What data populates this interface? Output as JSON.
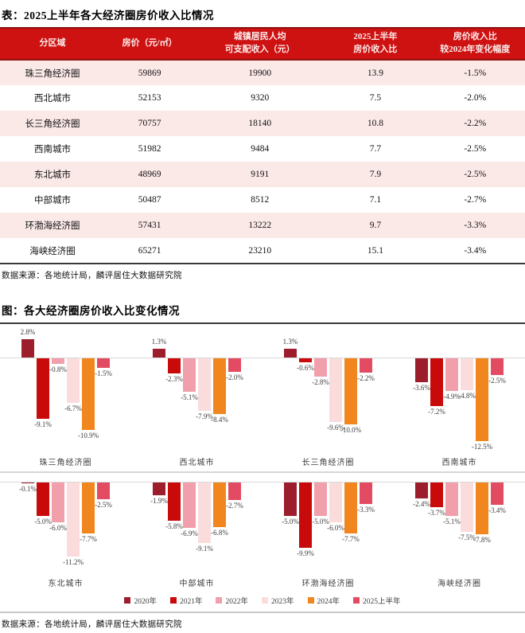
{
  "table_section": {
    "title": "表：2025上半年各大经济圈房价收入比情况",
    "source": "数据来源：各地统计局，麟评居住大数据研究院",
    "columns": [
      "分区域",
      "房价（元/㎡）",
      "城镇居民人均\n可支配收入（元）",
      "2025上半年\n房价收入比",
      "房价收入比\n较2024年变化幅度"
    ],
    "rows": [
      [
        "珠三角经济圈",
        "59869",
        "19900",
        "13.9",
        "-1.5%"
      ],
      [
        "西北城市",
        "52153",
        "9320",
        "7.5",
        "-2.0%"
      ],
      [
        "长三角经济圈",
        "70757",
        "18140",
        "10.8",
        "-2.2%"
      ],
      [
        "西南城市",
        "51982",
        "9484",
        "7.7",
        "-2.5%"
      ],
      [
        "东北城市",
        "48969",
        "9191",
        "7.9",
        "-2.5%"
      ],
      [
        "中部城市",
        "50487",
        "8512",
        "7.1",
        "-2.7%"
      ],
      [
        "环渤海经济圈",
        "57431",
        "13222",
        "9.7",
        "-3.3%"
      ],
      [
        "海峡经济圈",
        "65271",
        "23210",
        "15.1",
        "-3.4%"
      ]
    ]
  },
  "chart_section": {
    "title": "图：各大经济圈房价收入比变化情况",
    "source": "数据来源：各地统计局，麟评居住大数据研究院"
  },
  "chart_data": {
    "type": "bar",
    "unit": "%",
    "legend_position": "bottom",
    "series_names": [
      "2020年",
      "2021年",
      "2022年",
      "2023年",
      "2024年",
      "2025上半年"
    ],
    "series_colors": [
      "#9C1E2D",
      "#C90A0A",
      "#F09FAB",
      "#FADCDD",
      "#F0861D",
      "#E24B61"
    ],
    "groups": [
      {
        "name": "珠三角经济圈",
        "values": [
          2.8,
          -9.1,
          -0.8,
          -6.7,
          -10.9,
          -1.5
        ]
      },
      {
        "name": "西北城市",
        "values": [
          1.3,
          -2.3,
          -5.1,
          -7.9,
          -8.4,
          -2.0
        ]
      },
      {
        "name": "长三角经济圈",
        "values": [
          1.3,
          -0.6,
          -2.8,
          -9.6,
          -10.0,
          -2.2
        ]
      },
      {
        "name": "西南城市",
        "values": [
          -3.6,
          -7.2,
          -4.9,
          -4.8,
          -12.5,
          -2.5
        ]
      },
      {
        "name": "东北城市",
        "values": [
          -0.1,
          -5.0,
          -6.0,
          -11.2,
          -7.7,
          -2.5
        ]
      },
      {
        "name": "中部城市",
        "values": [
          -1.9,
          -5.8,
          -6.9,
          -9.1,
          -6.8,
          -2.7
        ]
      },
      {
        "name": "环渤海经济圈",
        "values": [
          -5.0,
          -9.9,
          -5.0,
          -6.0,
          -7.7,
          -3.3
        ]
      },
      {
        "name": "海峡经济圈",
        "values": [
          -2.4,
          -3.7,
          -5.1,
          -7.5,
          -7.8,
          -3.4
        ]
      }
    ]
  },
  "layout_colors": {
    "header_bg": "#CE1212",
    "header_text": "#FDEDED",
    "header_border": "#8E1111",
    "row_alt_pink": "#FBE9E8",
    "dark_rule": "#3A3A3A"
  }
}
